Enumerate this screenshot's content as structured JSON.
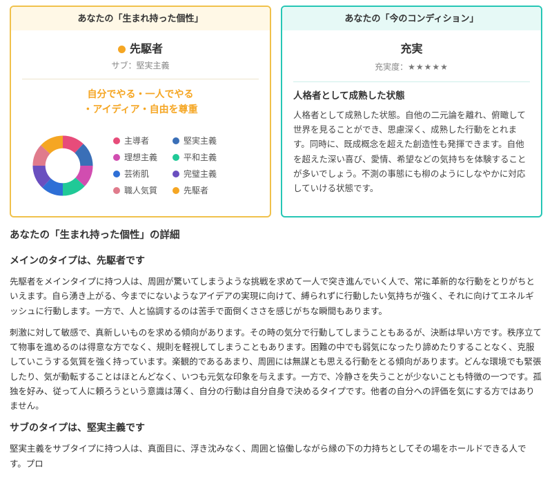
{
  "left_card": {
    "header": "あなたの「生まれ持った個性」",
    "main_type_label": "先駆者",
    "sub_label": "サブ：堅実主義",
    "keywords_line1": "自分でやる・一人でやる",
    "keywords_line2": "・アイディア・自由を尊重",
    "main_dot_color": "#f5a623",
    "divider_color": "#eee5cc"
  },
  "donut": {
    "segments": [
      {
        "label": "主導者",
        "color": "#e74c7a",
        "value": 12
      },
      {
        "label": "堅実主義",
        "color": "#3a6fb7",
        "value": 13
      },
      {
        "label": "理想主義",
        "color": "#d14db0",
        "value": 12
      },
      {
        "label": "平和主義",
        "color": "#20c997",
        "value": 13
      },
      {
        "label": "芸術肌",
        "color": "#2e6fd6",
        "value": 12
      },
      {
        "label": "完璧主義",
        "color": "#6a4fbf",
        "value": 13
      },
      {
        "label": "職人気質",
        "color": "#e07b8c",
        "value": 12
      },
      {
        "label": "先駆者",
        "color": "#f5a623",
        "value": 13
      }
    ]
  },
  "right_card": {
    "header": "あなたの「今のコンディション」",
    "main_title": "充実",
    "fullness_label": "充実度：",
    "stars": "★★★★★",
    "subtitle": "人格者として成熟した状態",
    "description": "人格者として成熟した状態。自他の二元論を離れ、俯瞰して世界を見ることができ、思慮深く、成熟した行動をとれます。同時に、既成概念を超えた創造性も発揮できます。自他を超えた深い喜び、愛情、希望などの気持ちを体験することが多いでしょう。不測の事態にも柳のようにしなやかに対応していける状態です。"
  },
  "detail": {
    "section_title": "あなたの「生まれ持った個性」の詳細",
    "main_type_heading": "メインのタイプは、先駆者です",
    "main_type_p1": "先駆者をメインタイプに持つ人は、周囲が驚いてしまうような挑戦を求めて一人で突き進んでいく人で、常に革新的な行動をとりがちといえます。自ら湧き上がる、今までにないようなアイデアの実現に向けて、縛られずに行動したい気持ちが強く、それに向けてエネルギッシュに行動します。一方で、人と協調するのは苦手で面倒くささを感じがちな瞬間もあります。",
    "main_type_p2": "刺激に対して敏感で、真新しいものを求める傾向があります。その時の気分で行動してしまうこともあるが、決断は早い方です。秩序立てて物事を進めるのは得意な方でなく、規則を軽視してしまうこともあります。困難の中でも弱気になったり諦めたりすることなく、克服していこうする気質を強く持っています。楽観的であるあまり、周囲には無謀とも思える行動をとる傾向があります。どんな環境でも緊張したり、気が動転することはほとんどなく、いつも元気な印象を与えます。一方で、冷静さを失うことが少ないことも特徴の一つです。孤独を好み、従って人に頼ろうという意識は薄く、自分の行動は自分自身で決めるタイプです。他者の自分への評価を気にする方ではありません。",
    "sub_type_heading": "サブのタイプは、堅実主義です",
    "sub_type_p1": "堅実主義をサブタイプに持つ人は、真面目に、浮き沈みなく、周囲と協働しながら縁の下の力持ちとしてその場をホールドできる人です。プロ"
  },
  "colors": {
    "left_border": "#f0c14b",
    "right_border": "#26c6b5",
    "accent_orange": "#f5a623"
  }
}
